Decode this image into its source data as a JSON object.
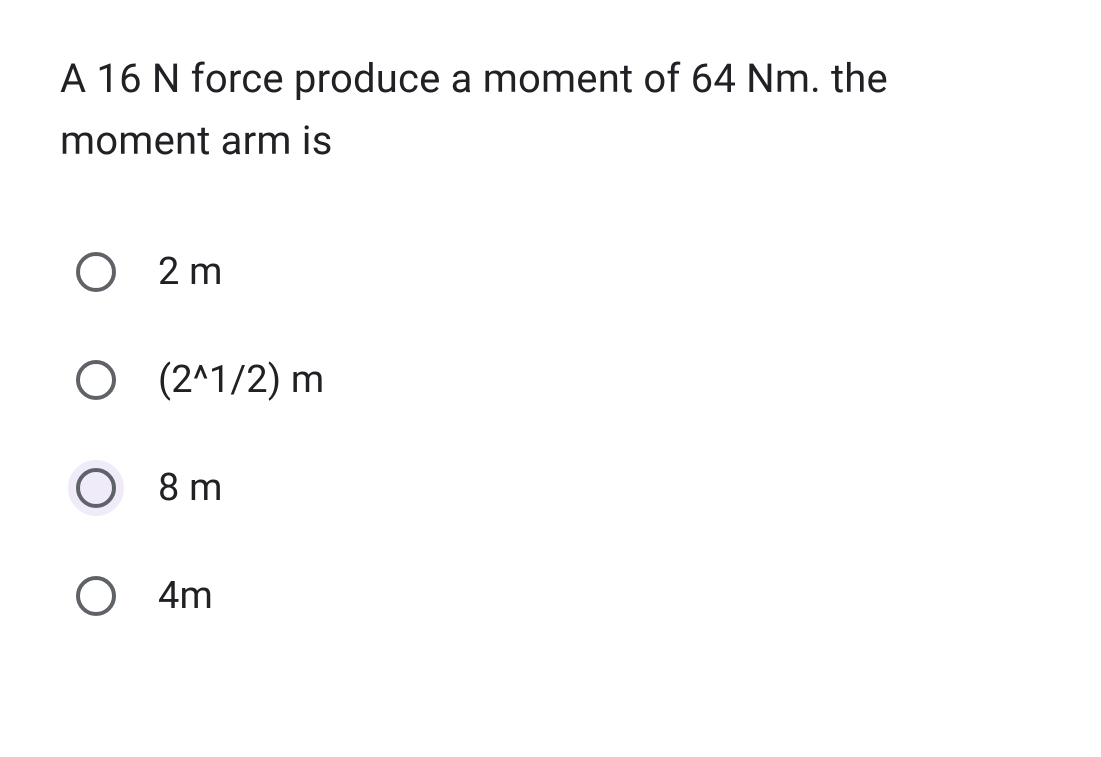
{
  "question": {
    "text": "A 16 N force produce a moment of 64 Nm. the moment arm is",
    "text_color": "#202124",
    "font_size": 40
  },
  "options": [
    {
      "label": "2 m",
      "selected": false,
      "hovered": false
    },
    {
      "label": "(2^1/2) m",
      "selected": false,
      "hovered": false
    },
    {
      "label": "8 m",
      "selected": false,
      "hovered": true
    },
    {
      "label": "4m",
      "selected": false,
      "hovered": false
    }
  ],
  "styling": {
    "background_color": "#ffffff",
    "radio_border_color": "#5f6368",
    "radio_border_width": 4,
    "radio_size": 40,
    "hover_bg": "#f0ebf8",
    "option_font_size": 38,
    "option_gap": 52
  }
}
